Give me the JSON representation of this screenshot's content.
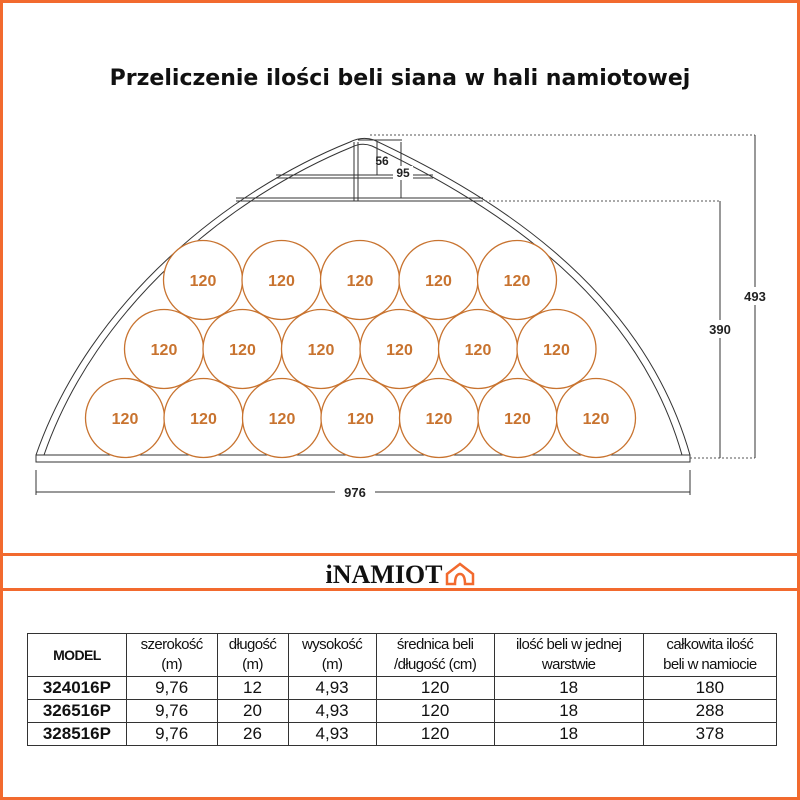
{
  "title": "Przeliczenie ilości beli siana w hali namiotowej",
  "diagram": {
    "bale_label": "120",
    "rows": [
      7,
      6,
      5
    ],
    "dimensions": {
      "width": "976",
      "total_height": "493",
      "wall_height": "390",
      "truss_small": "56",
      "truss_large": "95"
    },
    "bale_color": "#c8732f"
  },
  "logo": {
    "text": "iNAMIOT",
    "icon": "tent-house-icon",
    "color": "#f26a2e"
  },
  "table": {
    "headers": [
      [
        "MODEL"
      ],
      [
        "szerokość",
        "(m)"
      ],
      [
        "długość",
        "(m)"
      ],
      [
        "wysokość",
        "(m)"
      ],
      [
        "średnica beli",
        "/długość (cm)"
      ],
      [
        "ilość beli w jednej",
        "warstwie"
      ],
      [
        "całkowita ilość",
        "beli w namiocie"
      ]
    ],
    "rows": [
      [
        "324016P",
        "9,76",
        "12",
        "4,93",
        "120",
        "18",
        "180"
      ],
      [
        "326516P",
        "9,76",
        "20",
        "4,93",
        "120",
        "18",
        "288"
      ],
      [
        "328516P",
        "9,76",
        "26",
        "4,93",
        "120",
        "18",
        "378"
      ]
    ]
  },
  "accent_color": "#f26a2e"
}
